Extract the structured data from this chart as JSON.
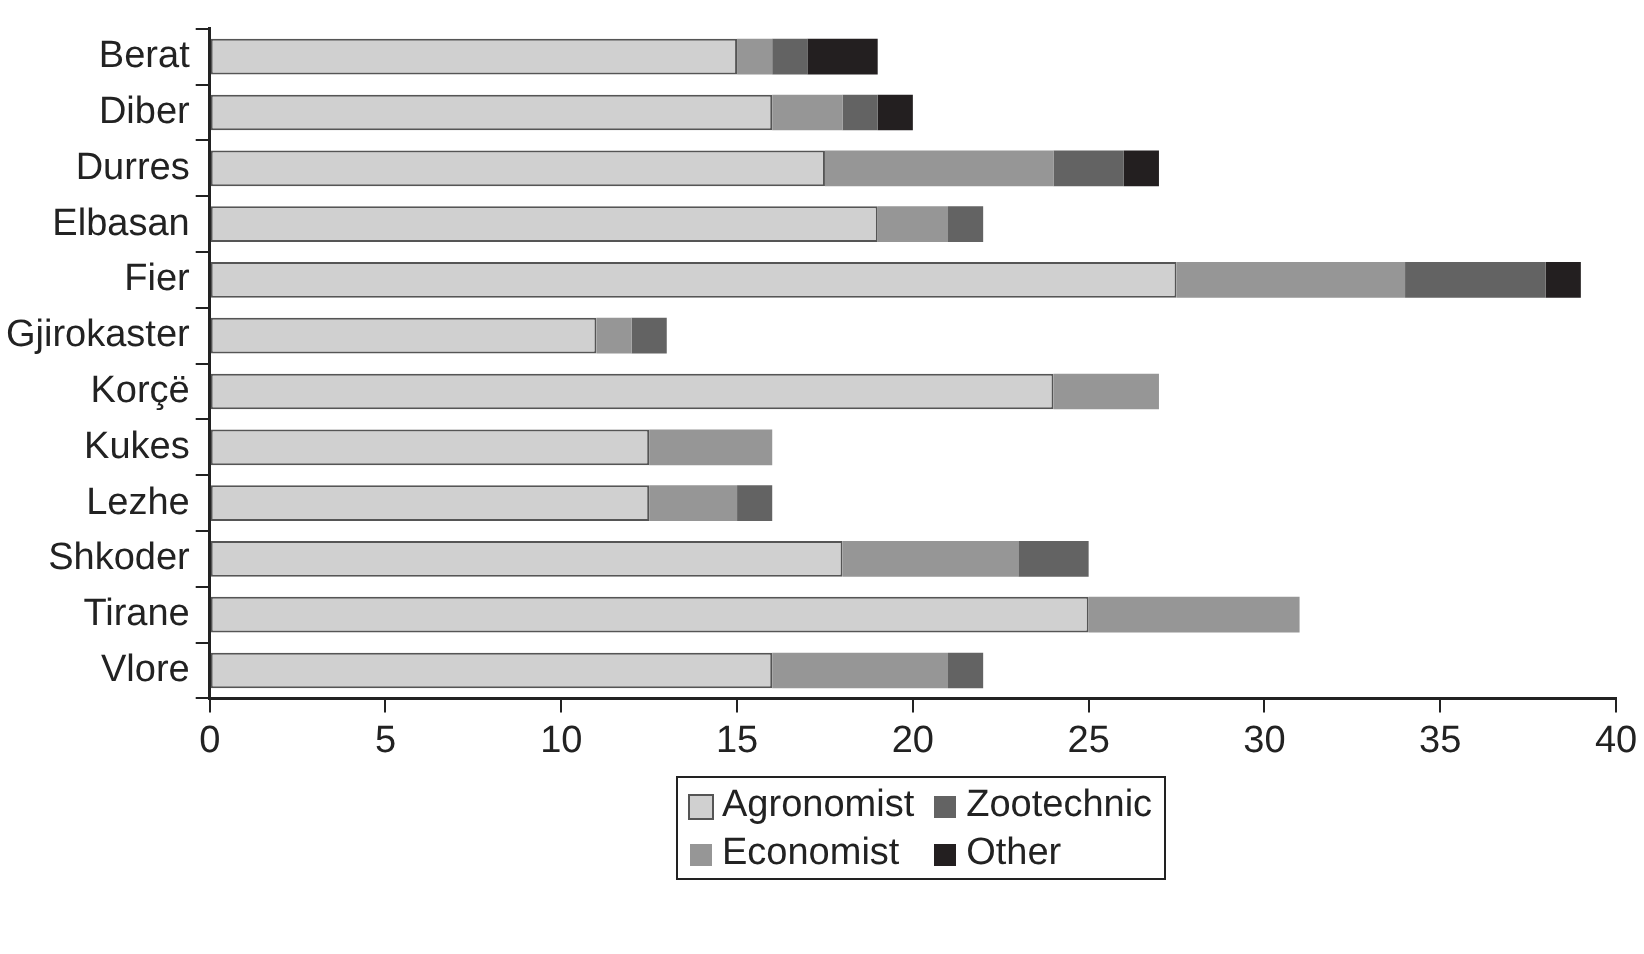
{
  "chart_data": {
    "type": "bar",
    "orientation": "horizontal",
    "stacked": true,
    "categories": [
      "Berat",
      "Diber",
      "Durres",
      "Elbasan",
      "Fier",
      "Gjirokaster",
      "Korçë",
      "Kukes",
      "Lezhe",
      "Shkoder",
      "Tirane",
      "Vlore"
    ],
    "series": [
      {
        "name": "Agronomist",
        "color": "#d0d0d0",
        "values": [
          15,
          16,
          17.5,
          19,
          27.5,
          11,
          24,
          12.5,
          12.5,
          18,
          25,
          16
        ]
      },
      {
        "name": "Economist",
        "color": "#969696",
        "values": [
          1,
          2,
          6.5,
          2,
          6.5,
          1,
          3,
          3.5,
          2.5,
          5,
          6,
          5
        ]
      },
      {
        "name": "Zootechnic",
        "color": "#636363",
        "values": [
          1,
          1,
          2,
          1,
          4,
          1,
          null,
          null,
          1,
          2,
          null,
          1
        ]
      },
      {
        "name": "Other",
        "color": "#231f20",
        "values": [
          2,
          1,
          1,
          null,
          1,
          null,
          null,
          null,
          null,
          null,
          null,
          null
        ]
      }
    ],
    "xlim": [
      0,
      40
    ],
    "xticks": [
      0,
      5,
      10,
      15,
      20,
      25,
      30,
      35,
      40
    ],
    "grid": false,
    "legend": "bottom"
  }
}
